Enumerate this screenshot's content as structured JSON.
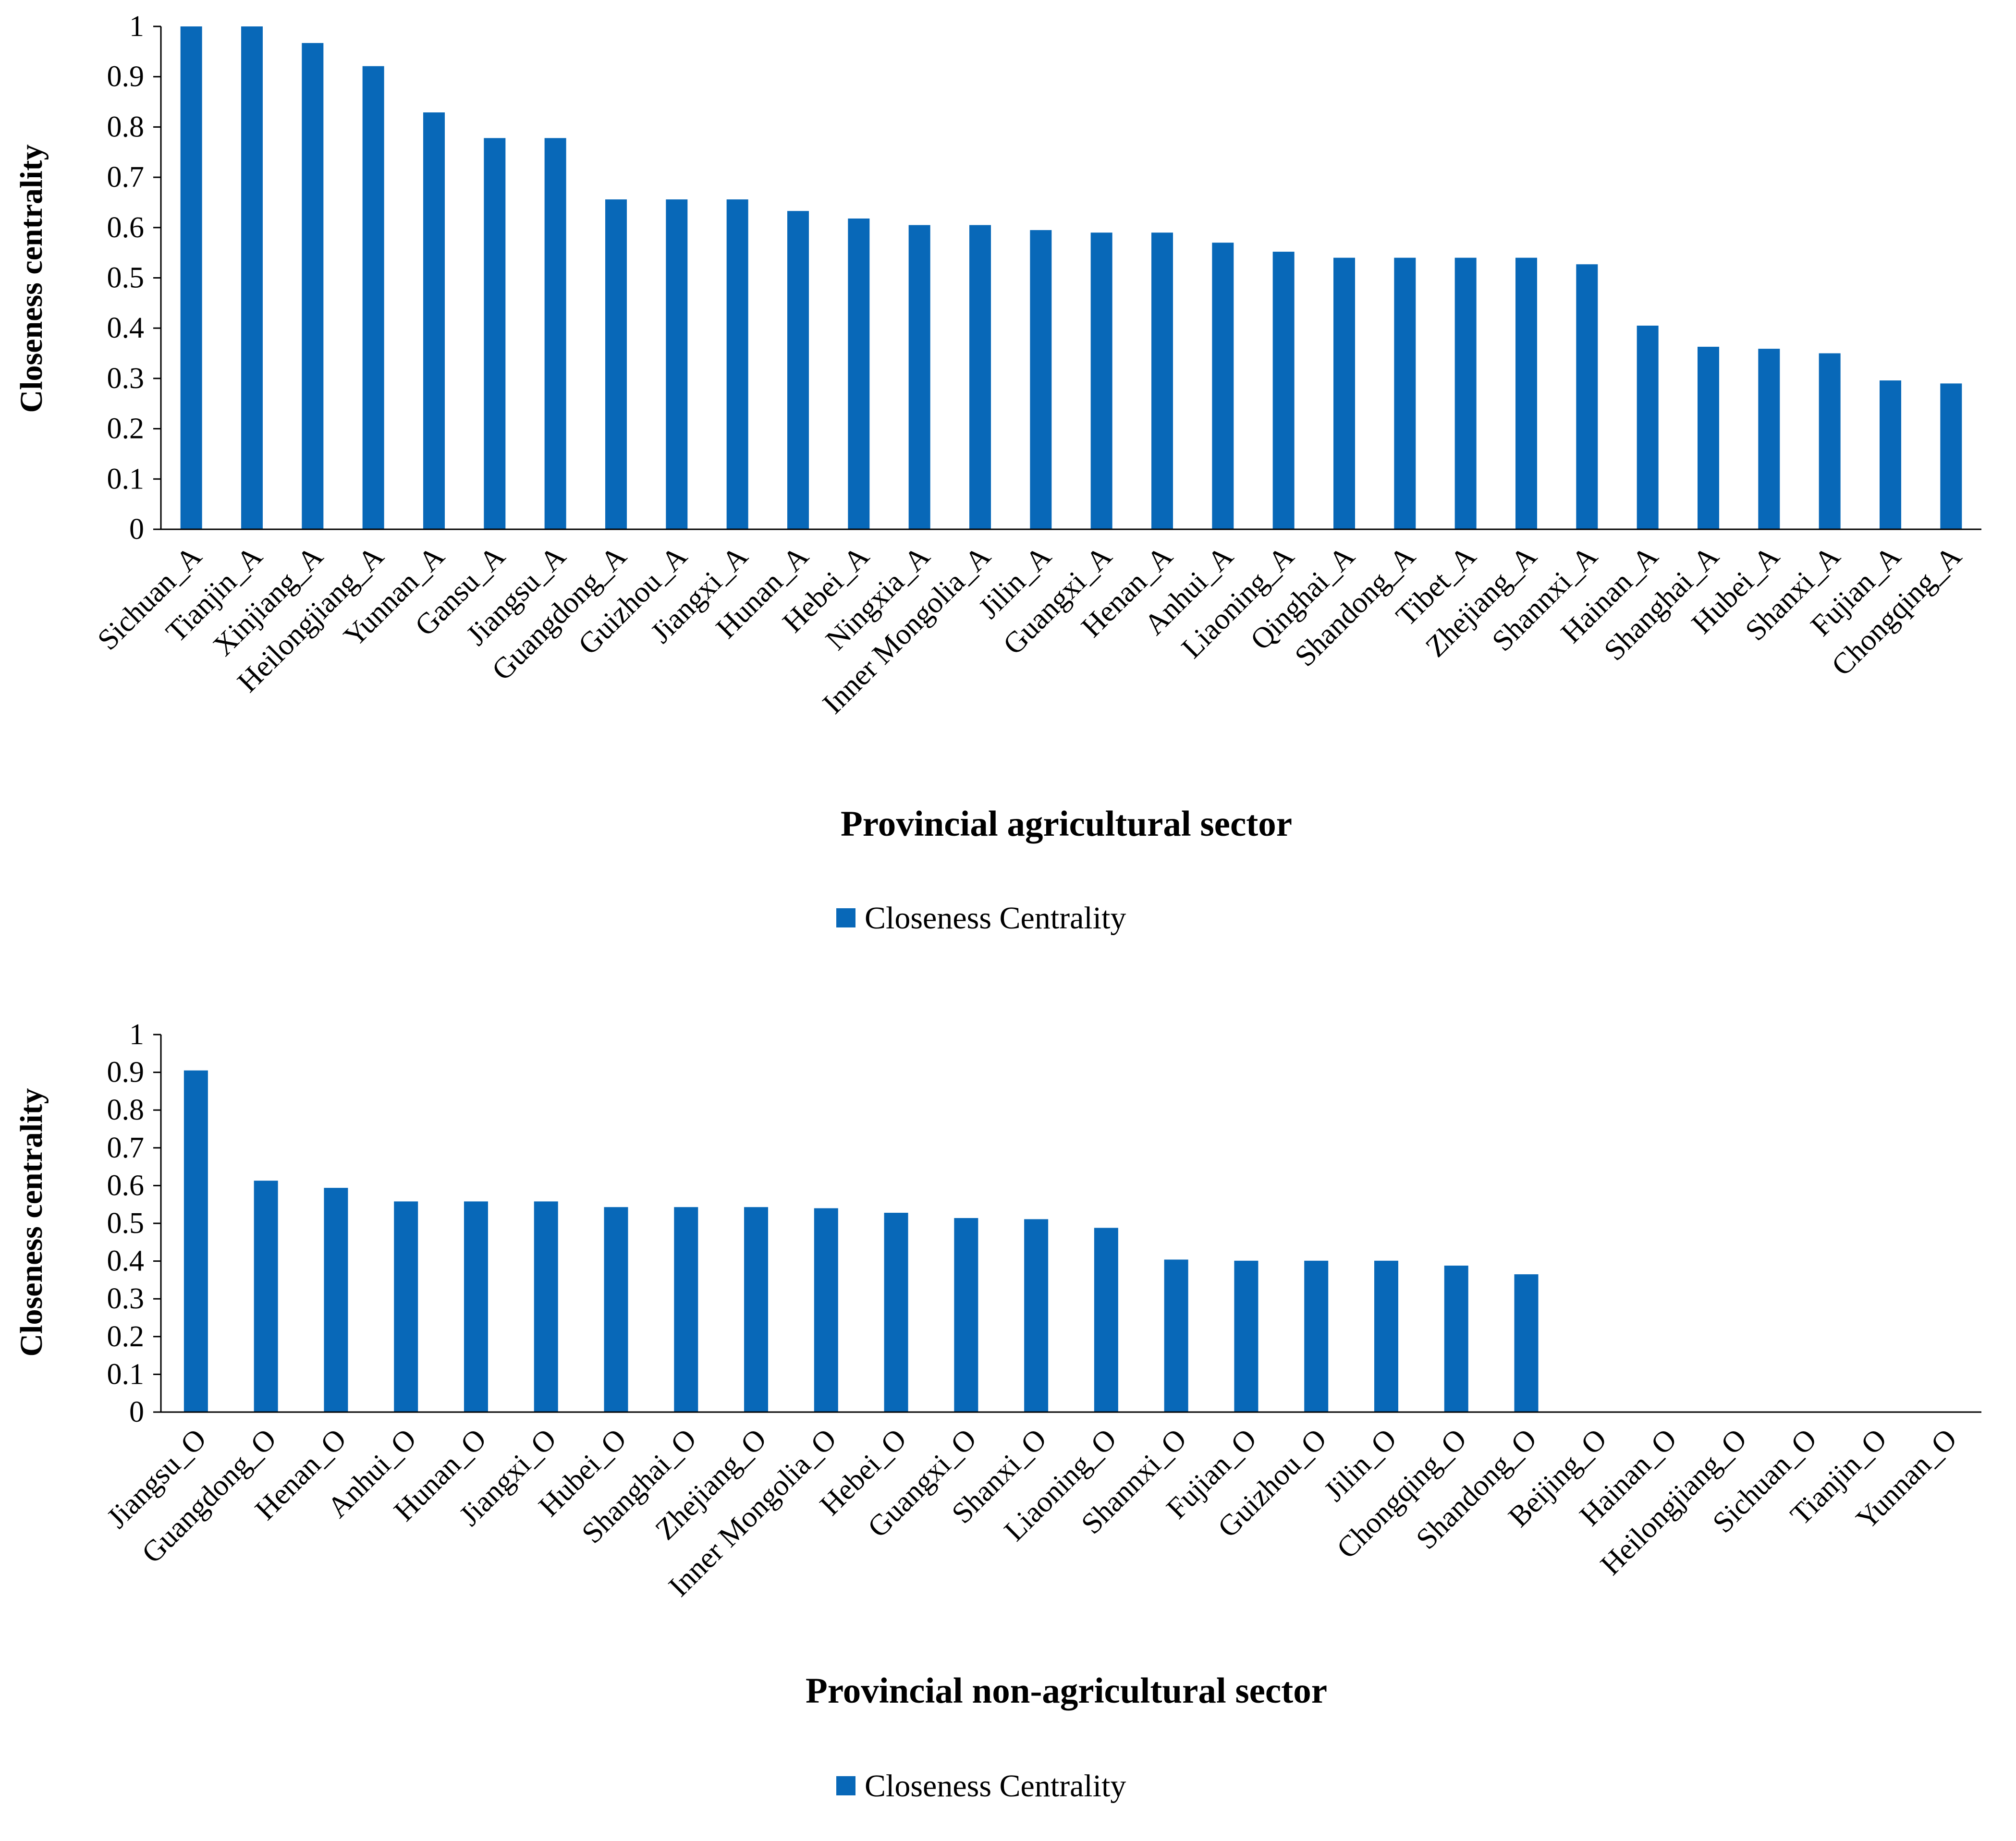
{
  "chart_data": [
    {
      "type": "bar",
      "title": "",
      "xlabel": "Provincial agricultural sector",
      "ylabel": "Closeness centrality",
      "ylim": [
        0,
        1
      ],
      "yticks": [
        "0",
        "0.1",
        "0.2",
        "0.3",
        "0.4",
        "0.5",
        "0.6",
        "0.7",
        "0.8",
        "0.9",
        "1"
      ],
      "legend": "Closeness Centrality",
      "legend_position": "bottom",
      "color": "#0868b8",
      "categories": [
        "Sichuan_A",
        "Tianjin_A",
        "Xinjiang_A",
        "Heilongjiang_A",
        "Yunnan_A",
        "Gansu_A",
        "Jiangsu_A",
        "Guangdong_A",
        "Guizhou_A",
        "Jiangxi_A",
        "Hunan_A",
        "Hebei_A",
        "Ningxia_A",
        "Inner Mongolia_A",
        "Jilin_A",
        "Guangxi_A",
        "Henan_A",
        "Anhui_A",
        "Liaoning_A",
        "Qinghai_A",
        "Shandong_A",
        "Tibet_A",
        "Zhejiang_A",
        "Shannxi_A",
        "Hainan_A",
        "Shanghai_A",
        "Hubei_A",
        "Shanxi_A",
        "Fujian_A",
        "Chongqing_A"
      ],
      "values": [
        1.0,
        1.0,
        0.967,
        0.921,
        0.829,
        0.778,
        0.778,
        0.656,
        0.656,
        0.656,
        0.633,
        0.618,
        0.605,
        0.605,
        0.595,
        0.59,
        0.59,
        0.57,
        0.552,
        0.54,
        0.54,
        0.54,
        0.54,
        0.527,
        0.405,
        0.363,
        0.359,
        0.35,
        0.296,
        0.29
      ]
    },
    {
      "type": "bar",
      "title": "",
      "xlabel": "Provincial non-agricultural sector",
      "ylabel": "Closeness centrality",
      "ylim": [
        0,
        1
      ],
      "yticks": [
        "0",
        "0.1",
        "0.2",
        "0.3",
        "0.4",
        "0.5",
        "0.6",
        "0.7",
        "0.8",
        "0.9",
        "1"
      ],
      "legend": "Closeness Centrality",
      "legend_position": "bottom",
      "color": "#0868b8",
      "categories": [
        "Jiangsu_O",
        "Guangdong_O",
        "Henan_O",
        "Anhui_O",
        "Hunan_O",
        "Jiangxi_O",
        "Hubei_O",
        "Shanghai_O",
        "Zhejiang_O",
        "Inner Mongolia_O",
        "Hebei_O",
        "Guangxi_O",
        "Shanxi_O",
        "Liaoning_O",
        "Shannxi_O",
        "Fujian_O",
        "Guizhou_O",
        "Jilin_O",
        "Chongqing_O",
        "Shandong_O",
        "Beijing_O",
        "Hainan_O",
        "Heilongjiang_O",
        "Sichuan_O",
        "Tianjin_O",
        "Yunnan_O"
      ],
      "values": [
        0.905,
        0.613,
        0.594,
        0.558,
        0.558,
        0.558,
        0.543,
        0.543,
        0.543,
        0.54,
        0.528,
        0.514,
        0.511,
        0.488,
        0.404,
        0.401,
        0.401,
        0.401,
        0.388,
        0.365,
        0,
        0,
        0,
        0,
        0,
        0
      ]
    }
  ]
}
